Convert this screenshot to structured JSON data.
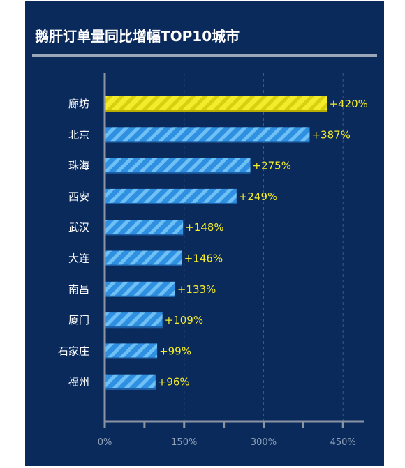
{
  "title": "鹅肝订单量同比增幅TOP10城市",
  "colors": {
    "background": "#0b2a5c",
    "bar": "#2f8fe0",
    "bar_stripe": "#6fc0f5",
    "highlight_bar": "#f2ec2a",
    "highlight_stripe": "#d7cf10",
    "value_label": "#f2ec2a",
    "axis": "#8a94a3"
  },
  "chart_data": {
    "type": "bar",
    "orientation": "horizontal",
    "categories": [
      "廊坊",
      "北京",
      "珠海",
      "西安",
      "武汉",
      "大连",
      "南昌",
      "厦门",
      "石家庄",
      "福州"
    ],
    "values": [
      420,
      387,
      275,
      249,
      148,
      146,
      133,
      109,
      99,
      96
    ],
    "value_labels": [
      "+420%",
      "+387%",
      "+275%",
      "+249%",
      "+148%",
      "+146%",
      "+133%",
      "+109%",
      "+99%",
      "+96%"
    ],
    "highlight_index": 0,
    "title": "鹅肝订单量同比增幅TOP10城市",
    "xlabel": "",
    "ylabel": "",
    "xlim": [
      0,
      490
    ],
    "x_ticks": [
      0,
      150,
      300,
      450
    ],
    "x_tick_labels": [
      "0%",
      "150%",
      "300%",
      "450%"
    ],
    "grid": true,
    "legend": "none"
  }
}
